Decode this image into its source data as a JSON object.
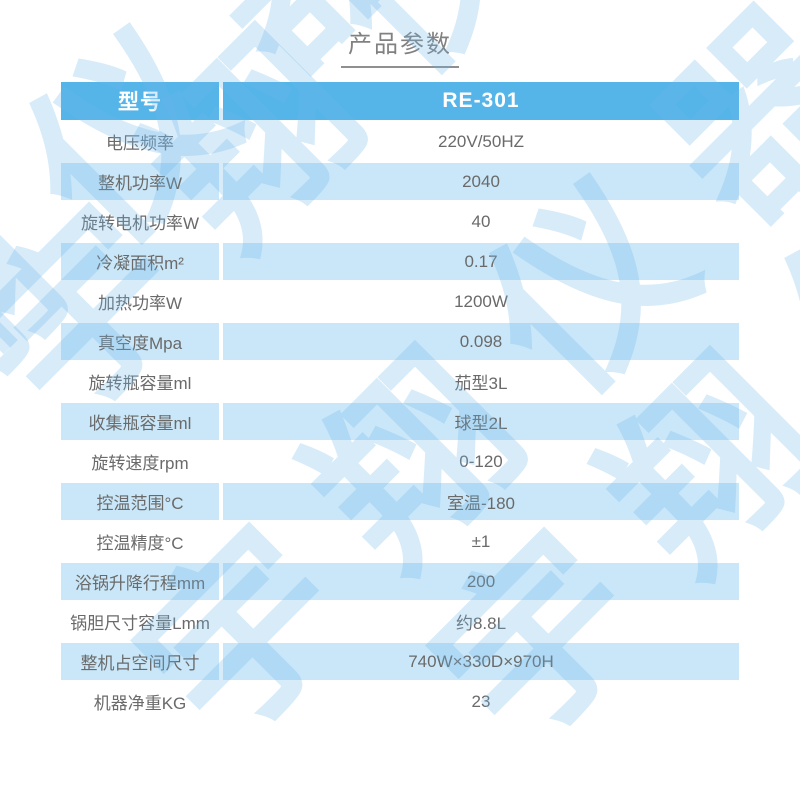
{
  "page": {
    "title": "产品参数"
  },
  "theme": {
    "header_bg": "#55b5e9",
    "alt_row_bg": "#c9e7f8",
    "header_text": "#ffffff",
    "body_text": "#6a6a6a",
    "title_text": "#818181",
    "underline_color": "#8f8f8f",
    "watermark_color": "rgba(106,180,233,0.27)"
  },
  "watermark": {
    "text": "宇翔仪器"
  },
  "table": {
    "header": {
      "label": "型号",
      "value": "RE-301"
    },
    "rows": [
      {
        "label": "电压频率",
        "value": "220V/50HZ"
      },
      {
        "label": "整机功率W",
        "value": "2040"
      },
      {
        "label": "旋转电机功率W",
        "value": "40"
      },
      {
        "label": "冷凝面积m²",
        "value": "0.17"
      },
      {
        "label": "加热功率W",
        "value": "1200W"
      },
      {
        "label": "真空度Mpa",
        "value": "0.098"
      },
      {
        "label": "旋转瓶容量ml",
        "value": "茄型3L"
      },
      {
        "label": "收集瓶容量ml",
        "value": "球型2L"
      },
      {
        "label": "旋转速度rpm",
        "value": "0-120"
      },
      {
        "label": "控温范围°C",
        "value": "室温-180"
      },
      {
        "label": "控温精度°C",
        "value": "±1"
      },
      {
        "label": "浴锅升降行程mm",
        "value": "200"
      },
      {
        "label": "锅胆尺寸容量Lmm",
        "value": "约8.8L"
      },
      {
        "label": "整机占空间尺寸",
        "value": "740W×330D×970H"
      },
      {
        "label": "机器净重KG",
        "value": "23"
      }
    ]
  }
}
